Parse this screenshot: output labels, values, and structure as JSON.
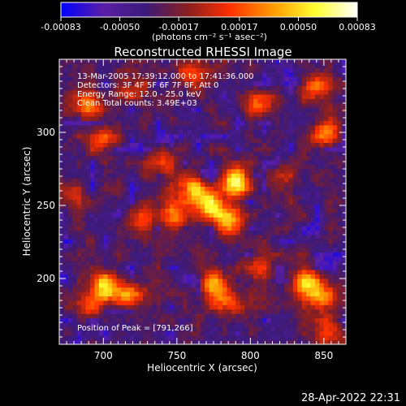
{
  "chart_data": {
    "type": "heatmap",
    "title": "Reconstructed RHESSI Image",
    "xlabel": "Heliocentric X (arcsec)",
    "ylabel": "Heliocentric Y (arcsec)",
    "xlim": [
      670,
      865
    ],
    "ylim": [
      155,
      350
    ],
    "x_ticks": [
      "700",
      "750",
      "800",
      "850"
    ],
    "y_ticks": [
      "200",
      "250",
      "300"
    ],
    "colorbar": {
      "label": "(photons cm⁻² s⁻¹ asec⁻²)",
      "range": [
        -0.00083,
        0.00083
      ],
      "ticks": [
        "-0.00083",
        "-0.00050",
        "-0.00017",
        "0.00017",
        "0.00050",
        "0.00083"
      ],
      "colormap": [
        "#0000ff",
        "#5a1ea6",
        "#3b1a7a",
        "#8a1f1f",
        "#ff3000",
        "#ff9a00",
        "#ffff30",
        "#ffffff"
      ]
    },
    "annotations": [
      "13-Mar-2005 17:39:12.000 to 17:41:36.000",
      "Detectors: 3F 4F 5F 6F 7F 8F, Att 0",
      "Energy Range: 12.0 - 25.0 keV",
      "Clean     Total counts: 3.49E+03"
    ],
    "peak_text": "Position of Peak = [791,266]",
    "peak": [
      791,
      266
    ],
    "sources": [
      {
        "x": 790,
        "y": 266,
        "amp": 1.0
      },
      {
        "x": 760,
        "y": 262,
        "amp": 0.85
      },
      {
        "x": 773,
        "y": 250,
        "amp": 0.9
      },
      {
        "x": 748,
        "y": 242,
        "amp": 0.75
      },
      {
        "x": 785,
        "y": 240,
        "amp": 0.7
      },
      {
        "x": 740,
        "y": 280,
        "amp": 0.55
      },
      {
        "x": 700,
        "y": 196,
        "amp": 0.85
      },
      {
        "x": 716,
        "y": 188,
        "amp": 0.75
      },
      {
        "x": 692,
        "y": 182,
        "amp": 0.6
      },
      {
        "x": 775,
        "y": 196,
        "amp": 0.75
      },
      {
        "x": 783,
        "y": 185,
        "amp": 0.6
      },
      {
        "x": 838,
        "y": 198,
        "amp": 0.9
      },
      {
        "x": 848,
        "y": 186,
        "amp": 0.75
      },
      {
        "x": 853,
        "y": 300,
        "amp": 0.75
      },
      {
        "x": 845,
        "y": 330,
        "amp": 0.55
      },
      {
        "x": 688,
        "y": 318,
        "amp": 0.6
      },
      {
        "x": 700,
        "y": 295,
        "amp": 0.5
      },
      {
        "x": 760,
        "y": 340,
        "amp": 0.5
      },
      {
        "x": 806,
        "y": 318,
        "amp": 0.6
      },
      {
        "x": 818,
        "y": 270,
        "amp": 0.4
      },
      {
        "x": 726,
        "y": 240,
        "amp": 0.4
      },
      {
        "x": 852,
        "y": 162,
        "amp": 0.5
      },
      {
        "x": 806,
        "y": 208,
        "amp": 0.45
      },
      {
        "x": 720,
        "y": 330,
        "amp": 0.4
      },
      {
        "x": 676,
        "y": 258,
        "amp": 0.35
      }
    ]
  },
  "footer": {
    "timestamp": "28-Apr-2022 22:31"
  }
}
